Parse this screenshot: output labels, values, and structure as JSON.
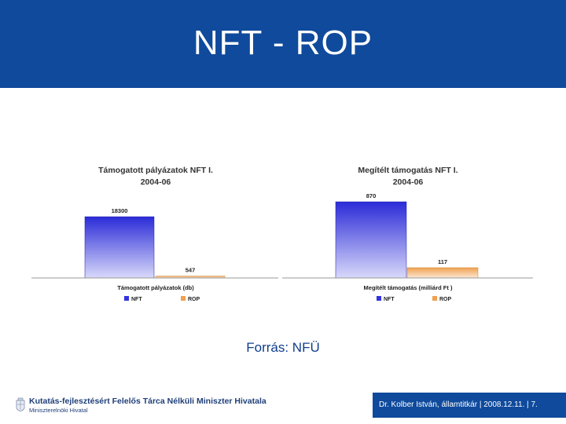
{
  "header": {
    "title": "NFT - ROP"
  },
  "source_note": "Forrás: NFÜ",
  "footer": {
    "org": "Kutatás-fejlesztésért Felelős Tárca Nélküli Miniszter Hivatala",
    "sub": "Miniszterelnöki Hivatal",
    "credit": "Dr. Kolber István, államtitkár | 2008.12.11. | 7."
  },
  "colors": {
    "nft": "#3333e0",
    "rop": "#f0a050",
    "header": "#0f4a9c"
  },
  "chart_data": [
    {
      "type": "bar",
      "title": [
        "Támogatott pályázatok NFT I.",
        "2004-06"
      ],
      "xlabel": "Támogatott pályázatok (db)",
      "series": [
        {
          "name": "NFT",
          "values": [
            18300
          ]
        },
        {
          "name": "ROP",
          "values": [
            547
          ]
        }
      ],
      "data_labels": [
        "18300",
        "547"
      ],
      "ylim": [
        0,
        18300
      ],
      "legend_position": "bottom"
    },
    {
      "type": "bar",
      "title": [
        "Megítélt támogatás NFT I.",
        "2004-06"
      ],
      "xlabel": "Megítélt támogatás (milliárd Ft )",
      "series": [
        {
          "name": "NFT",
          "values": [
            870
          ]
        },
        {
          "name": "ROP",
          "values": [
            117
          ]
        }
      ],
      "data_labels": [
        "870",
        "117"
      ],
      "ylim": [
        0,
        870
      ],
      "legend_position": "bottom"
    }
  ]
}
